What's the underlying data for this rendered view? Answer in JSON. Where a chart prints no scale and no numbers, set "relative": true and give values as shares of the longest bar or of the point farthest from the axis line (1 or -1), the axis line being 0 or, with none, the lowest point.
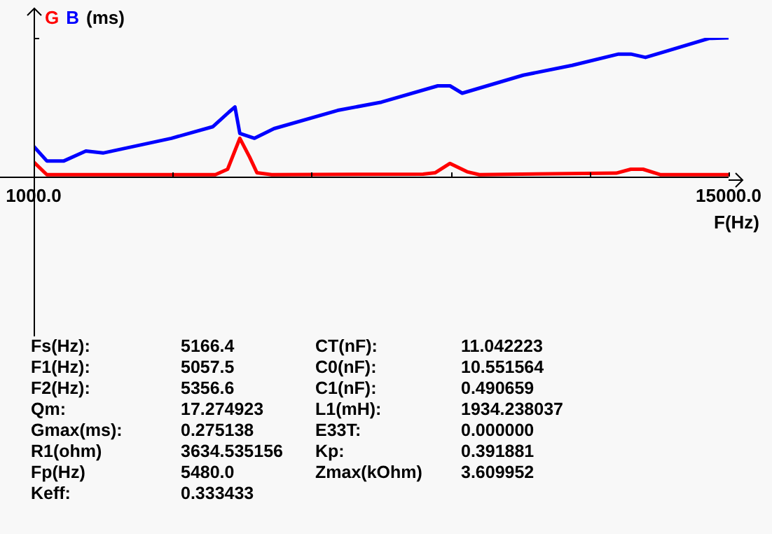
{
  "chart_data": {
    "type": "line",
    "relative": true,
    "ylabel": "(ms)",
    "xlabel": "F(Hz)",
    "legend": "top left",
    "grid": false,
    "marker": "none",
    "line_style": "solid",
    "xlim": [
      1000,
      15000
    ],
    "xticks": [
      {
        "value": 1000,
        "label": "1000.0"
      },
      {
        "value": 3800,
        "label": null
      },
      {
        "value": 6600,
        "label": null
      },
      {
        "value": 9400,
        "label": null
      },
      {
        "value": 12200,
        "label": null
      },
      {
        "value": 15000,
        "label": "15000.0"
      }
    ],
    "x": [
      1000,
      1266,
      1610,
      2053,
      2398,
      3776,
      4613,
      4938,
      5056,
      5154,
      5450,
      5844,
      7124,
      8010,
      9142,
      9388,
      9634,
      10865,
      11849,
      12785,
      13030,
      13326,
      13720,
      14606,
      15000
    ],
    "series": [
      {
        "name": "G",
        "color": "#ff0000",
        "x": [
          1000,
          1266,
          4662,
          4908,
          5154,
          5351,
          5499,
          5795,
          8846,
          9093,
          9388,
          9732,
          9979,
          12735,
          13030,
          13277,
          13621,
          15000
        ],
        "values": [
          0.106,
          0.014,
          0.014,
          0.053,
          0.276,
          0.141,
          0.028,
          0.014,
          0.018,
          0.028,
          0.095,
          0.035,
          0.014,
          0.025,
          0.053,
          0.053,
          0.014,
          0.014
        ]
      },
      {
        "name": "B",
        "color": "#0000ff",
        "values": [
          0.219,
          0.113,
          0.113,
          0.184,
          0.17,
          0.276,
          0.36,
          0.466,
          0.502,
          0.311,
          0.276,
          0.346,
          0.477,
          0.537,
          0.654,
          0.654,
          0.601,
          0.731,
          0.802,
          0.883,
          0.883,
          0.859,
          0.901,
          0.996,
          1.0
        ]
      }
    ],
    "annotations": [
      "Fs(Hz):",
      "5166.4",
      "CT(nF):",
      "11.042223",
      "F1(Hz):",
      "5057.5",
      "C0(nF):",
      "10.551564",
      "F2(Hz):",
      "5356.6",
      "C1(nF):",
      "0.490659",
      "Qm:",
      "17.274923",
      "L1(mH):",
      "1934.238037",
      "Gmax(ms):",
      "0.275138",
      "E33T:",
      "0.000000",
      "R1(ohm)",
      "3634.535156",
      "Kp:",
      "0.391881",
      "Fp(Hz)",
      "5480.0",
      "Zmax(kOhm)",
      "3.609952",
      "Keff:",
      "0.333433"
    ]
  }
}
